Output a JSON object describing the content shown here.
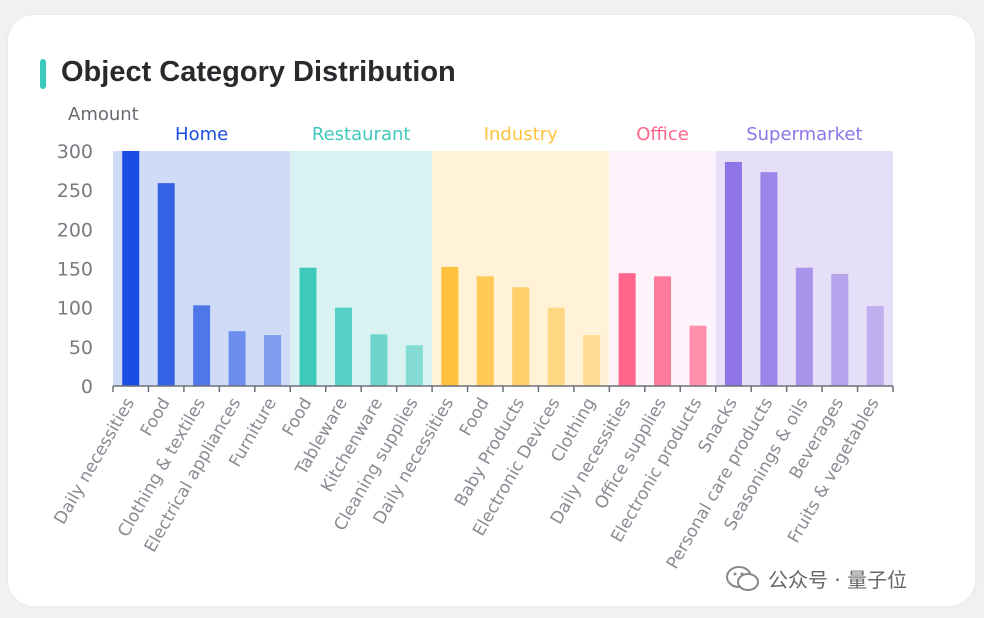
{
  "chart_data": {
    "type": "bar",
    "title": "Object Category Distribution",
    "ylabel": "Amount",
    "xlabel": "",
    "ylim": [
      0,
      300
    ],
    "yticks": [
      0,
      50,
      100,
      150,
      200,
      250,
      300
    ],
    "grid": false,
    "groups": [
      {
        "name": "Home",
        "color": "#1a4de3",
        "bg": "#d0dbf7",
        "categories": [
          "Daily necessities",
          "Food",
          "Clothing & textiles",
          "Electrical appliances",
          "Furniture"
        ],
        "values": [
          300,
          259,
          103,
          70,
          65
        ]
      },
      {
        "name": "Restaurant",
        "color": "#40c8bc",
        "bg": "#d8f3f2",
        "categories": [
          "Food",
          "Tableware",
          "Kitchenware",
          "Cleaning supplies"
        ],
        "values": [
          151,
          100,
          66,
          52
        ]
      },
      {
        "name": "Industry",
        "color": "#ffc23f",
        "bg": "#fff2d6",
        "categories": [
          "Daily necessities",
          "Food",
          "Baby Products",
          "Electronic Devices",
          "Clothing"
        ],
        "values": [
          152,
          140,
          126,
          100,
          65
        ]
      },
      {
        "name": "Office",
        "color": "#ff658a",
        "bg": "#fdf3fb",
        "categories": [
          "Daily necessities",
          "Office supplies",
          "Electronic products"
        ],
        "values": [
          144,
          140,
          77
        ]
      },
      {
        "name": "Supermarket",
        "color": "#8e74e5",
        "bg": "#e5e0f7",
        "categories": [
          "Snacks",
          "Personal care products",
          "Seasonings & oils",
          "Beverages",
          "Fruits & vegetables"
        ],
        "values": [
          286,
          273,
          151,
          143,
          102
        ]
      }
    ]
  },
  "watermark": {
    "text": "公众号 · 量子位",
    "icon": "wechat-icon"
  }
}
